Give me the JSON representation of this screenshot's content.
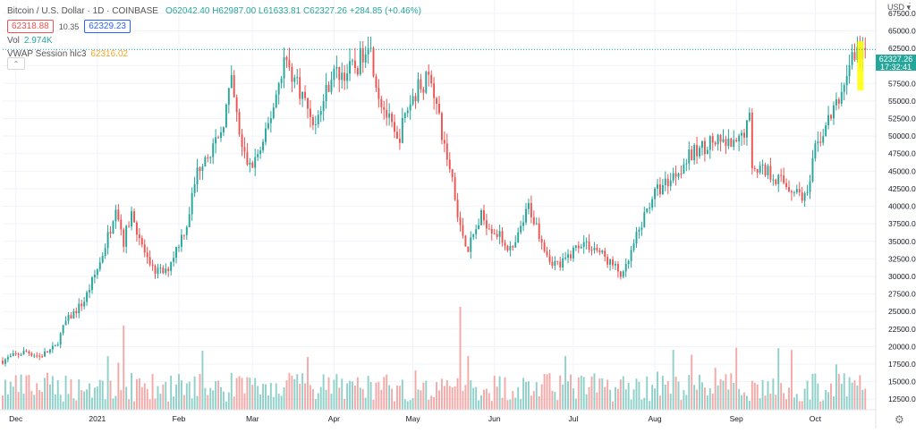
{
  "legend": {
    "title": "Bitcoin / U.S. Dollar · 1D · COINBASE",
    "ohlc": "O62042.40 H62987.00 L61633.81 C62327.26",
    "change": "+284.85 (+0.46%)",
    "sell_price": "62318.88",
    "spread": "10.35",
    "buy_price": "62329.23",
    "vol_label": "Vol",
    "vol_value": "2.974K",
    "vwap_label": "VWAP Session hlc3",
    "vwap_value": "62316.02"
  },
  "price_scale": {
    "currency": "USD",
    "ticks": [
      "67500.00",
      "65000.00",
      "62500.00",
      "60000.00",
      "57500.00",
      "55000.00",
      "52500.00",
      "50000.00",
      "47500.00",
      "45000.00",
      "42500.00",
      "40000.00",
      "37500.00",
      "35000.00",
      "32500.00",
      "30000.00",
      "27500.00",
      "25000.00",
      "22500.00",
      "20000.00",
      "17500.00",
      "15000.00",
      "12500.00"
    ],
    "last_price": "62327.26",
    "countdown": "17:32:41"
  },
  "colors": {
    "up": "#26a69a",
    "down": "#ef5350",
    "up_vol": "#8fd1c9",
    "down_vol": "#f3a9a7",
    "highlight": "#ffff00",
    "grid": "#f0f3fa"
  },
  "chart_data": {
    "type": "candlestick",
    "title": "Bitcoin / U.S. Dollar",
    "interval": "1D",
    "exchange": "COINBASE",
    "currency": "USD",
    "y_range": [
      11000,
      68500
    ],
    "grid": true,
    "x_range": [
      "2020-11-26",
      "2021-10-24"
    ],
    "x_ticks": [
      "Dec",
      "2021",
      "Feb",
      "Mar",
      "Apr",
      "May",
      "Jun",
      "Jul",
      "Aug",
      "Sep",
      "Oct"
    ],
    "x_tick_dates": [
      "2020-12-01",
      "2021-01-01",
      "2021-02-01",
      "2021-03-01",
      "2021-04-01",
      "2021-05-01",
      "2021-06-01",
      "2021-07-01",
      "2021-08-01",
      "2021-09-01",
      "2021-10-01"
    ],
    "close_path": [
      [
        "2020-11-26",
        18000
      ],
      [
        "2020-12-01",
        18800
      ],
      [
        "2020-12-05",
        19300
      ],
      [
        "2020-12-10",
        18600
      ],
      [
        "2020-12-16",
        19900
      ],
      [
        "2020-12-20",
        23500
      ],
      [
        "2020-12-27",
        26500
      ],
      [
        "2021-01-02",
        32000
      ],
      [
        "2021-01-06",
        37000
      ],
      [
        "2021-01-08",
        40500
      ],
      [
        "2021-01-11",
        35000
      ],
      [
        "2021-01-14",
        39000
      ],
      [
        "2021-01-21",
        31000
      ],
      [
        "2021-01-27",
        30500
      ],
      [
        "2021-01-31",
        34000
      ],
      [
        "2021-02-04",
        37500
      ],
      [
        "2021-02-08",
        45000
      ],
      [
        "2021-02-11",
        47500
      ],
      [
        "2021-02-16",
        49000
      ],
      [
        "2021-02-21",
        57500
      ],
      [
        "2021-02-25",
        48000
      ],
      [
        "2021-02-28",
        45500
      ],
      [
        "2021-03-05",
        48500
      ],
      [
        "2021-03-10",
        56000
      ],
      [
        "2021-03-13",
        61000
      ],
      [
        "2021-03-18",
        57500
      ],
      [
        "2021-03-25",
        51500
      ],
      [
        "2021-03-31",
        58800
      ],
      [
        "2021-04-05",
        59000
      ],
      [
        "2021-04-10",
        60000
      ],
      [
        "2021-04-14",
        64000
      ],
      [
        "2021-04-18",
        56000
      ],
      [
        "2021-04-25",
        49000
      ],
      [
        "2021-04-29",
        54000
      ],
      [
        "2021-05-03",
        57000
      ],
      [
        "2021-05-08",
        58500
      ],
      [
        "2021-05-12",
        50000
      ],
      [
        "2021-05-16",
        44000
      ],
      [
        "2021-05-19",
        37000
      ],
      [
        "2021-05-22",
        34000
      ],
      [
        "2021-05-27",
        38500
      ],
      [
        "2021-06-01",
        36500
      ],
      [
        "2021-06-08",
        33500
      ],
      [
        "2021-06-14",
        40000
      ],
      [
        "2021-06-22",
        32500
      ],
      [
        "2021-06-26",
        31500
      ],
      [
        "2021-07-04",
        35000
      ],
      [
        "2021-07-10",
        33800
      ],
      [
        "2021-07-20",
        30000
      ],
      [
        "2021-07-25",
        35500
      ],
      [
        "2021-07-31",
        41500
      ],
      [
        "2021-08-07",
        44000
      ],
      [
        "2021-08-14",
        47000
      ],
      [
        "2021-08-22",
        49200
      ],
      [
        "2021-09-01",
        48500
      ],
      [
        "2021-09-06",
        52500
      ],
      [
        "2021-09-07",
        46000
      ],
      [
        "2021-09-13",
        45000
      ],
      [
        "2021-09-21",
        42800
      ],
      [
        "2021-09-28",
        41200
      ],
      [
        "2021-10-01",
        48000
      ],
      [
        "2021-10-05",
        51500
      ],
      [
        "2021-10-10",
        55000
      ],
      [
        "2021-10-15",
        61500
      ],
      [
        "2021-10-20",
        62300
      ]
    ],
    "volume_spikes": [
      [
        "2021-01-11",
        27000000
      ],
      [
        "2021-05-19",
        33000000
      ]
    ],
    "last_close": 62327.26
  }
}
